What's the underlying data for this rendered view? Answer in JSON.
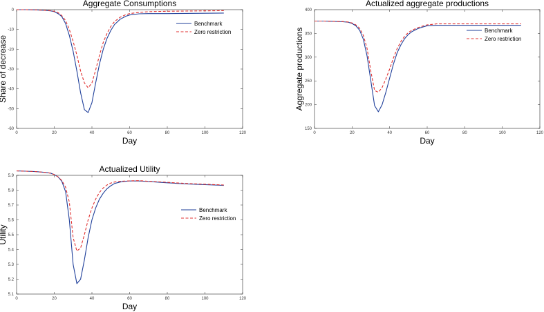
{
  "chart_data": [
    {
      "type": "line",
      "title": "Aggregate Consumptions",
      "xlabel": "Day",
      "ylabel": "Share of decrease",
      "xlim": [
        0,
        120
      ],
      "ylim": [
        -60,
        0
      ],
      "xticks": [
        0,
        20,
        40,
        60,
        80,
        100,
        120
      ],
      "yticks": [
        0,
        -10,
        -20,
        -30,
        -40,
        -50,
        -60
      ],
      "legend_position": "top-right",
      "series": [
        {
          "name": "Benchmark",
          "color": "#1f3f9a",
          "style": "solid",
          "x": [
            0,
            5,
            10,
            15,
            18,
            20,
            22,
            24,
            26,
            28,
            30,
            32,
            34,
            36,
            38,
            40,
            42,
            44,
            46,
            48,
            50,
            52,
            55,
            58,
            60,
            65,
            70,
            75,
            80,
            90,
            100,
            110
          ],
          "y": [
            0,
            0,
            -0.1,
            -0.3,
            -0.6,
            -1,
            -2,
            -3.5,
            -7,
            -13,
            -21,
            -31,
            -42,
            -50.5,
            -52,
            -47,
            -37,
            -27.5,
            -20,
            -14.5,
            -10.5,
            -7.5,
            -4.8,
            -3.3,
            -2.7,
            -2.1,
            -2,
            -2,
            -2,
            -1.9,
            -1.8,
            -1.7
          ]
        },
        {
          "name": "Zero restriction",
          "color": "#e03030",
          "style": "dashed",
          "x": [
            0,
            5,
            10,
            15,
            18,
            20,
            22,
            24,
            26,
            28,
            30,
            32,
            34,
            36,
            38,
            40,
            42,
            44,
            46,
            48,
            50,
            52,
            55,
            58,
            60,
            65,
            70,
            75,
            80,
            90,
            100,
            110
          ],
          "y": [
            0,
            0,
            -0.1,
            -0.3,
            -0.5,
            -0.8,
            -1.5,
            -3,
            -5.5,
            -10,
            -16,
            -23,
            -31,
            -37,
            -39.5,
            -37,
            -30.5,
            -23,
            -16.5,
            -12,
            -8.5,
            -6,
            -3.8,
            -2.5,
            -2,
            -1.4,
            -1,
            -0.9,
            -0.8,
            -0.7,
            -0.6,
            -0.5
          ]
        }
      ]
    },
    {
      "type": "line",
      "title": "Actualized aggregate productions",
      "xlabel": "Day",
      "ylabel": "Aggregate productions",
      "xlim": [
        0,
        120
      ],
      "ylim": [
        150,
        400
      ],
      "xticks": [
        0,
        20,
        40,
        60,
        80,
        100,
        120
      ],
      "yticks": [
        400,
        350,
        300,
        250,
        200,
        150
      ],
      "legend_position": "top-right",
      "series": [
        {
          "name": "Benchmark",
          "color": "#1f3f9a",
          "style": "solid",
          "x": [
            0,
            5,
            10,
            15,
            18,
            20,
            22,
            24,
            26,
            28,
            30,
            32,
            34,
            36,
            38,
            40,
            42,
            44,
            46,
            48,
            50,
            52,
            55,
            58,
            60,
            65,
            70,
            80,
            90,
            100,
            110
          ],
          "y": [
            376,
            376,
            375.5,
            374.5,
            373.5,
            371,
            366,
            357,
            338,
            302,
            250,
            198,
            185,
            200,
            226,
            256,
            285,
            309,
            326,
            339,
            348,
            354,
            360,
            364,
            366,
            367,
            367,
            367,
            367,
            367,
            367
          ]
        },
        {
          "name": "Zero restriction",
          "color": "#e03030",
          "style": "dashed",
          "x": [
            0,
            5,
            10,
            15,
            18,
            20,
            22,
            24,
            26,
            28,
            30,
            32,
            34,
            36,
            38,
            40,
            42,
            44,
            46,
            48,
            50,
            52,
            55,
            58,
            60,
            65,
            70,
            80,
            90,
            100,
            110
          ],
          "y": [
            376,
            376,
            375.5,
            375,
            374,
            372,
            368,
            361,
            346,
            318,
            270,
            230,
            226,
            236,
            254,
            275,
            298,
            318,
            333,
            344,
            352,
            357,
            362,
            366,
            368,
            370,
            370,
            370,
            370,
            370,
            370
          ]
        }
      ]
    },
    {
      "type": "line",
      "title": "Actualized Utility",
      "xlabel": "Day",
      "ylabel": "Utility",
      "xlim": [
        0,
        120
      ],
      "ylim": [
        5.1,
        5.9
      ],
      "xticks": [
        0,
        20,
        40,
        60,
        80,
        100,
        120
      ],
      "yticks": [
        5.9,
        5.8,
        5.7,
        5.6,
        5.5,
        5.4,
        5.3,
        5.2,
        5.1
      ],
      "legend_position": "right",
      "series": [
        {
          "name": "Benchmark",
          "color": "#1f3f9a",
          "style": "solid",
          "x": [
            0,
            5,
            10,
            15,
            18,
            20,
            22,
            24,
            26,
            28,
            30,
            32,
            34,
            36,
            38,
            40,
            42,
            44,
            46,
            48,
            50,
            52,
            55,
            58,
            60,
            65,
            70,
            80,
            90,
            100,
            110
          ],
          "y": [
            5.93,
            5.928,
            5.925,
            5.92,
            5.915,
            5.905,
            5.89,
            5.86,
            5.79,
            5.6,
            5.3,
            5.17,
            5.2,
            5.33,
            5.48,
            5.6,
            5.68,
            5.74,
            5.78,
            5.81,
            5.83,
            5.845,
            5.855,
            5.86,
            5.862,
            5.862,
            5.858,
            5.85,
            5.842,
            5.837,
            5.832
          ]
        },
        {
          "name": "Zero restriction",
          "color": "#e03030",
          "style": "dashed",
          "x": [
            0,
            5,
            10,
            15,
            18,
            20,
            22,
            24,
            26,
            28,
            30,
            32,
            34,
            36,
            38,
            40,
            42,
            44,
            46,
            48,
            50,
            52,
            55,
            58,
            60,
            65,
            70,
            80,
            90,
            100,
            110
          ],
          "y": [
            5.93,
            5.928,
            5.925,
            5.92,
            5.915,
            5.905,
            5.89,
            5.865,
            5.82,
            5.72,
            5.48,
            5.39,
            5.41,
            5.5,
            5.6,
            5.68,
            5.74,
            5.785,
            5.815,
            5.835,
            5.848,
            5.855,
            5.86,
            5.862,
            5.863,
            5.864,
            5.86,
            5.853,
            5.845,
            5.84,
            5.835
          ]
        }
      ]
    }
  ]
}
